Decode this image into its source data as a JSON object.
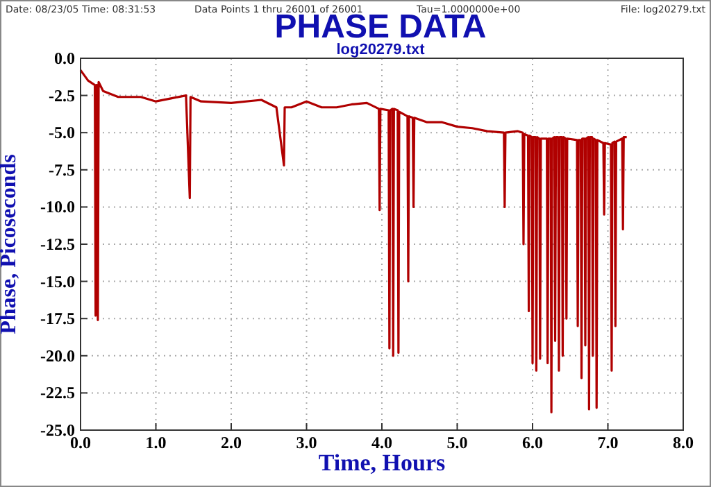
{
  "chart_data": {
    "type": "line",
    "title": "PHASE DATA",
    "subtitle": "log20279.txt",
    "xlabel": "Time, Hours",
    "ylabel": "Phase, Picoseconds",
    "annotations": [
      "Date: 08/23/05  Time: 08:31:53",
      "Data Points 1 thru 26001 of 26001",
      "Tau=1.0000000e+00",
      "File: log20279.txt"
    ],
    "xlim": [
      0,
      8
    ],
    "xticks": [
      {
        "value": 0,
        "label": "0.0"
      },
      {
        "value": 1,
        "label": "1.0"
      },
      {
        "value": 2,
        "label": "2.0"
      },
      {
        "value": 3,
        "label": "3.0"
      },
      {
        "value": 4,
        "label": "4.0"
      },
      {
        "value": 5,
        "label": "5.0"
      },
      {
        "value": 6,
        "label": "6.0"
      },
      {
        "value": 7,
        "label": "7.0"
      },
      {
        "value": 8,
        "label": "8.0"
      }
    ],
    "ylim": [
      -25,
      0
    ],
    "yticks": [
      {
        "value": 0,
        "label": "0.0"
      },
      -2.5,
      {
        "value": -5,
        "label": "-5.0"
      },
      -7.5,
      {
        "value": -10,
        "label": "-10.0"
      },
      -12.5,
      {
        "value": -15,
        "label": "-15.0"
      },
      -17.5,
      {
        "value": -20,
        "label": "-20.0"
      },
      -22.5,
      {
        "value": -25,
        "label": "-25.0"
      }
    ],
    "grid": true,
    "marker": "none",
    "line_style": "solid",
    "series": [
      {
        "color": "#b00000",
        "x": [
          0.0,
          0.1,
          0.19,
          0.2,
          0.21,
          0.22,
          0.23,
          0.24,
          0.3,
          0.5,
          0.8,
          1.0,
          1.2,
          1.4,
          1.45,
          1.46,
          1.6,
          2.0,
          2.4,
          2.6,
          2.7,
          2.71,
          2.8,
          3.0,
          3.2,
          3.4,
          3.6,
          3.8,
          3.96,
          3.97,
          3.98,
          4.09,
          4.1,
          4.11,
          4.14,
          4.15,
          4.16,
          4.21,
          4.22,
          4.23,
          4.34,
          4.35,
          4.36,
          4.41,
          4.42,
          4.43,
          4.6,
          4.8,
          5.0,
          5.2,
          5.4,
          5.62,
          5.63,
          5.64,
          5.8,
          5.87,
          5.88,
          5.89,
          5.94,
          5.95,
          5.96,
          5.99,
          6.0,
          6.01,
          6.04,
          6.05,
          6.06,
          6.09,
          6.1,
          6.11,
          6.19,
          6.2,
          6.21,
          6.24,
          6.25,
          6.26,
          6.29,
          6.3,
          6.31,
          6.34,
          6.35,
          6.36,
          6.39,
          6.4,
          6.41,
          6.44,
          6.45,
          6.46,
          6.59,
          6.6,
          6.61,
          6.64,
          6.65,
          6.66,
          6.69,
          6.7,
          6.71,
          6.74,
          6.75,
          6.76,
          6.79,
          6.8,
          6.81,
          6.84,
          6.85,
          6.86,
          6.94,
          6.95,
          6.96,
          7.04,
          7.05,
          7.06,
          7.09,
          7.1,
          7.11,
          7.19,
          7.2,
          7.21,
          7.25
        ],
        "values": [
          -0.8,
          -1.5,
          -1.8,
          -17.3,
          -1.8,
          -1.8,
          -17.6,
          -1.6,
          -2.2,
          -2.6,
          -2.6,
          -2.9,
          -2.7,
          -2.5,
          -9.4,
          -2.6,
          -2.9,
          -3.0,
          -2.8,
          -3.3,
          -7.2,
          -3.3,
          -3.3,
          -2.9,
          -3.3,
          -3.3,
          -3.1,
          -3.0,
          -3.4,
          -10.2,
          -3.4,
          -3.5,
          -19.5,
          -3.5,
          -3.4,
          -20.0,
          -3.4,
          -3.5,
          -19.8,
          -3.6,
          -3.9,
          -15.0,
          -3.9,
          -4.0,
          -10.0,
          -4.0,
          -4.3,
          -4.3,
          -4.6,
          -4.7,
          -4.9,
          -5.0,
          -10.0,
          -5.0,
          -4.9,
          -5.0,
          -12.5,
          -5.1,
          -5.2,
          -17.0,
          -5.2,
          -5.3,
          -20.5,
          -5.3,
          -5.3,
          -21.0,
          -5.3,
          -5.4,
          -20.2,
          -5.4,
          -5.4,
          -20.5,
          -5.4,
          -5.4,
          -23.8,
          -5.4,
          -5.3,
          -19.0,
          -5.3,
          -5.3,
          -21.0,
          -5.3,
          -5.3,
          -20.0,
          -5.3,
          -5.4,
          -17.5,
          -5.4,
          -5.5,
          -18.0,
          -5.5,
          -5.5,
          -21.5,
          -5.4,
          -5.4,
          -19.3,
          -5.4,
          -5.3,
          -23.6,
          -5.3,
          -5.3,
          -20.0,
          -5.4,
          -5.5,
          -23.5,
          -5.5,
          -5.7,
          -10.5,
          -5.7,
          -5.8,
          -21.0,
          -5.7,
          -5.6,
          -18.0,
          -5.6,
          -5.4,
          -11.5,
          -5.3,
          -5.3
        ]
      }
    ]
  }
}
